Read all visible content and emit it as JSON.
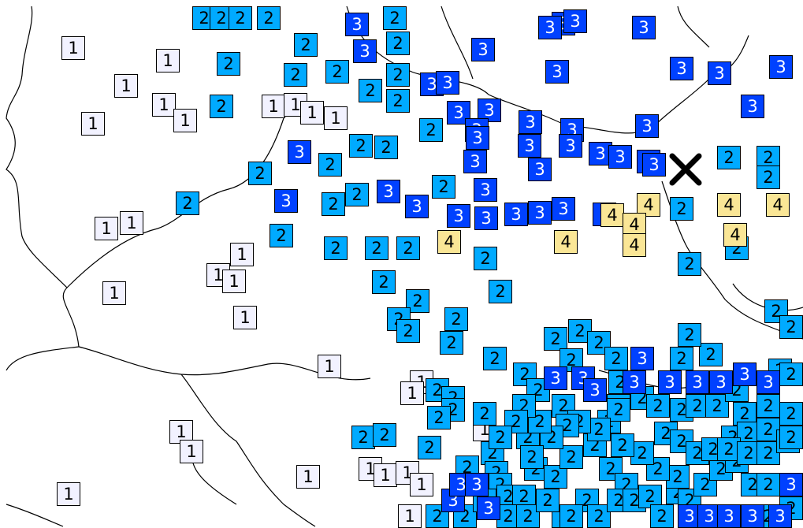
{
  "colors": {
    "intensity_1": "#f2f2ff",
    "intensity_2": "#00aaff",
    "intensity_3": "#0041ff",
    "intensity_4": "#fae696",
    "border_line": "#000000",
    "epicenter": "#000000"
  },
  "epicenter": {
    "icon": "epicenter-x-icon"
  },
  "stations": [
    [
      "1",
      1
    ],
    [
      "1",
      1
    ],
    [
      "1",
      1
    ],
    [
      "1",
      1
    ],
    [
      "1",
      1
    ],
    [
      "1",
      1
    ],
    [
      "1",
      1
    ],
    [
      "1",
      1
    ],
    [
      "1",
      1
    ],
    [
      "1",
      1
    ],
    [
      "1",
      1
    ],
    [
      "1",
      1
    ],
    [
      "1",
      1
    ],
    [
      "1",
      1
    ],
    [
      "1",
      1
    ],
    [
      "1",
      1
    ],
    [
      "1",
      1
    ],
    [
      "1",
      1
    ],
    [
      "1",
      1
    ],
    [
      "1",
      1
    ],
    [
      "1",
      1
    ],
    [
      "1",
      1
    ],
    [
      "1",
      1
    ],
    [
      "1",
      1
    ],
    [
      "1",
      1
    ],
    [
      "1",
      1
    ],
    [
      "1",
      1
    ],
    [
      "1",
      1
    ],
    [
      "1",
      1
    ],
    [
      "1",
      1
    ],
    [
      "2",
      2
    ],
    [
      "2",
      2
    ],
    [
      "2",
      2
    ],
    [
      "2",
      2
    ],
    [
      "2",
      2
    ],
    [
      "2",
      2
    ],
    [
      "2",
      2
    ],
    [
      "2",
      2
    ],
    [
      "2",
      2
    ],
    [
      "2",
      2
    ],
    [
      "2",
      2
    ],
    [
      "2",
      2
    ],
    [
      "2",
      2
    ],
    [
      "2",
      2
    ],
    [
      "2",
      2
    ],
    [
      "2",
      2
    ],
    [
      "2",
      2
    ],
    [
      "2",
      2
    ],
    [
      "2",
      2
    ],
    [
      "2",
      2
    ],
    [
      "2",
      2
    ],
    [
      "2",
      2
    ],
    [
      "2",
      2
    ],
    [
      "2",
      2
    ],
    [
      "2",
      2
    ],
    [
      "2",
      2
    ],
    [
      "2",
      2
    ],
    [
      "2",
      2
    ],
    [
      "2",
      2
    ],
    [
      "2",
      2
    ],
    [
      "2",
      2
    ],
    [
      "2",
      2
    ],
    [
      "2",
      2
    ],
    [
      "2",
      2
    ],
    [
      "2",
      2
    ],
    [
      "2",
      2
    ],
    [
      "2",
      2
    ],
    [
      "2",
      2
    ],
    [
      "2",
      2
    ],
    [
      "2",
      2
    ],
    [
      "2",
      2
    ],
    [
      "2",
      2
    ],
    [
      "2",
      2
    ],
    [
      "2",
      2
    ],
    [
      "2",
      2
    ],
    [
      "2",
      2
    ],
    [
      "2",
      2
    ],
    [
      "2",
      2
    ],
    [
      "2",
      2
    ],
    [
      "2",
      2
    ],
    [
      "2",
      2
    ],
    [
      "2",
      2
    ],
    [
      "2",
      2
    ],
    [
      "2",
      2
    ],
    [
      "2",
      2
    ],
    [
      "2",
      2
    ],
    [
      "2",
      2
    ],
    [
      "2",
      2
    ],
    [
      "2",
      2
    ],
    [
      "2",
      2
    ],
    [
      "2",
      2
    ],
    [
      "2",
      2
    ],
    [
      "2",
      2
    ],
    [
      "2",
      2
    ],
    [
      "2",
      2
    ],
    [
      "2",
      2
    ],
    [
      "2",
      2
    ],
    [
      "2",
      2
    ],
    [
      "2",
      2
    ],
    [
      "2",
      2
    ],
    [
      "2",
      2
    ],
    [
      "2",
      2
    ],
    [
      "2",
      2
    ],
    [
      "2",
      2
    ],
    [
      "2",
      2
    ],
    [
      "2",
      2
    ],
    [
      "2",
      2
    ],
    [
      "2",
      2
    ],
    [
      "2",
      2
    ],
    [
      "2",
      2
    ],
    [
      "2",
      2
    ],
    [
      "2",
      2
    ],
    [
      "2",
      2
    ],
    [
      "2",
      2
    ],
    [
      "2",
      2
    ],
    [
      "2",
      2
    ],
    [
      "2",
      2
    ],
    [
      "2",
      2
    ],
    [
      "2",
      2
    ],
    [
      "2",
      2
    ],
    [
      "2",
      2
    ],
    [
      "2",
      2
    ],
    [
      "2",
      2
    ],
    [
      "2",
      2
    ],
    [
      "2",
      2
    ],
    [
      "2",
      2
    ],
    [
      "2",
      2
    ],
    [
      "2",
      2
    ],
    [
      "2",
      2
    ],
    [
      "2",
      2
    ],
    [
      "2",
      2
    ],
    [
      "2",
      2
    ],
    [
      "2",
      2
    ],
    [
      "2",
      2
    ],
    [
      "2",
      2
    ],
    [
      "2",
      2
    ],
    [
      "2",
      2
    ],
    [
      "2",
      2
    ],
    [
      "2",
      2
    ],
    [
      "2",
      2
    ],
    [
      "2",
      2
    ],
    [
      "2",
      2
    ],
    [
      "2",
      2
    ],
    [
      "2",
      2
    ],
    [
      "2",
      2
    ],
    [
      "2",
      2
    ],
    [
      "2",
      2
    ],
    [
      "2",
      2
    ],
    [
      "2",
      2
    ],
    [
      "2",
      2
    ],
    [
      "2",
      2
    ],
    [
      "2",
      2
    ],
    [
      "2",
      2
    ],
    [
      "2",
      2
    ],
    [
      "2",
      2
    ],
    [
      "2",
      2
    ],
    [
      "2",
      2
    ],
    [
      "2",
      2
    ],
    [
      "2",
      2
    ],
    [
      "2",
      2
    ],
    [
      "2",
      2
    ],
    [
      "2",
      2
    ],
    [
      "2",
      2
    ],
    [
      "2",
      2
    ],
    [
      "2",
      2
    ],
    [
      "2",
      2
    ],
    [
      "2",
      2
    ],
    [
      "2",
      2
    ],
    [
      "2",
      2
    ],
    [
      "2",
      2
    ],
    [
      "3",
      3
    ],
    [
      "3",
      3
    ],
    [
      "3",
      3
    ],
    [
      "3",
      3
    ],
    [
      "3",
      3
    ],
    [
      "3",
      3
    ],
    [
      "3",
      3
    ],
    [
      "3",
      3
    ],
    [
      "3",
      3
    ],
    [
      "3",
      3
    ],
    [
      "3",
      3
    ],
    [
      "3",
      3
    ],
    [
      "3",
      3
    ],
    [
      "3",
      3
    ],
    [
      "3",
      3
    ],
    [
      "3",
      3
    ],
    [
      "3",
      3
    ],
    [
      "3",
      3
    ],
    [
      "3",
      3
    ],
    [
      "3",
      3
    ],
    [
      "3",
      3
    ],
    [
      "3",
      3
    ],
    [
      "3",
      3
    ],
    [
      "3",
      3
    ],
    [
      "3",
      3
    ],
    [
      "3",
      3
    ],
    [
      "3",
      3
    ],
    [
      "3",
      3
    ],
    [
      "3",
      3
    ],
    [
      "3",
      3
    ],
    [
      "3",
      3
    ],
    [
      "3",
      3
    ],
    [
      "3",
      3
    ],
    [
      "3",
      3
    ],
    [
      "3",
      3
    ],
    [
      "3",
      3
    ],
    [
      "3",
      3
    ],
    [
      "3",
      3
    ],
    [
      "3",
      3
    ],
    [
      "3",
      3
    ],
    [
      "3",
      3
    ],
    [
      "3",
      3
    ],
    [
      "3",
      3
    ],
    [
      "3",
      3
    ],
    [
      "3",
      3
    ],
    [
      "3",
      3
    ],
    [
      "3",
      3
    ],
    [
      "3",
      3
    ],
    [
      "3",
      3
    ],
    [
      "3",
      3
    ],
    [
      "3",
      3
    ],
    [
      "3",
      3
    ],
    [
      "3",
      3
    ],
    [
      "3",
      3
    ],
    [
      "3",
      3
    ],
    [
      "3",
      3
    ],
    [
      "3",
      3
    ],
    [
      "3",
      3
    ],
    [
      "3",
      3
    ],
    [
      "3",
      3
    ],
    [
      "4",
      4
    ],
    [
      "4",
      4
    ],
    [
      "4",
      4
    ],
    [
      "4",
      4
    ],
    [
      "4",
      4
    ],
    [
      "4",
      4
    ],
    [
      "4",
      4
    ],
    [
      "4",
      4
    ],
    [
      "4",
      4
    ]
  ]
}
